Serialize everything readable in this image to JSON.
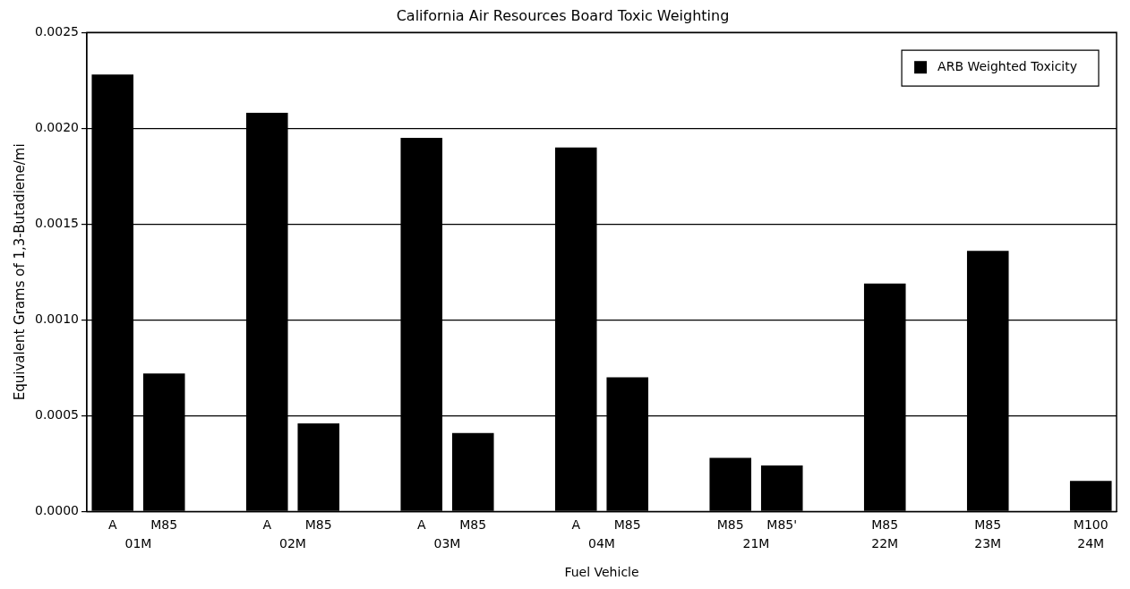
{
  "chart_data": {
    "type": "bar",
    "title": "California Air Resources Board Toxic Weighting",
    "xlabel": "Fuel Vehicle",
    "ylabel": "Equivalent Grams of 1,3-Butadiene/mi",
    "categories": [
      "A",
      "M85",
      null,
      "A",
      "M85",
      null,
      "A",
      "M85",
      null,
      "A",
      "M85",
      null,
      "M85",
      "M85'",
      null,
      "M85",
      null,
      "M85",
      null,
      "M100"
    ],
    "series": [
      {
        "name": "ARB Weighted Toxicity",
        "color": "#000000",
        "values": [
          0.00228,
          0.00072,
          null,
          0.00208,
          0.00046,
          null,
          0.00195,
          0.00041,
          null,
          0.0019,
          0.0007,
          null,
          0.00028,
          0.00024,
          null,
          0.00119,
          null,
          0.00136,
          null,
          0.00016
        ]
      }
    ],
    "annotations": [
      "01M",
      "02M",
      "03M",
      "04M",
      "21M",
      "22M",
      "23M",
      "24M"
    ],
    "ylim": [
      0,
      0.0025
    ],
    "yticks": [
      {
        "value": 0,
        "label": "0.0000"
      },
      {
        "value": 0.0005,
        "label": "0.0005"
      },
      {
        "value": 0.001,
        "label": "0.0010"
      },
      {
        "value": 0.0015,
        "label": "0.0015"
      },
      {
        "value": 0.002,
        "label": "0.0020"
      },
      {
        "value": 0.0025,
        "label": "0.0025"
      }
    ],
    "grid": "y",
    "legend": "top right"
  }
}
